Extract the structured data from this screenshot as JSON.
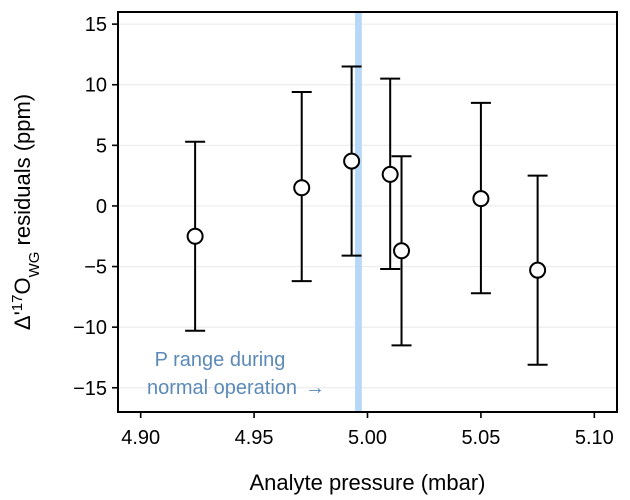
{
  "chart_data": {
    "type": "scatter",
    "xlabel": "Analyte pressure (mbar)",
    "ylabel": {
      "prefix": "Δ'",
      "sup": "17",
      "main": "O",
      "sub": "WG",
      "suffix": " residuals (ppm)"
    },
    "xlim": [
      4.89,
      5.11
    ],
    "ylim": [
      -17,
      16
    ],
    "x_ticks": [
      4.9,
      4.95,
      5.0,
      5.05,
      5.1
    ],
    "x_tick_labels": [
      "4.90",
      "4.95",
      "5.00",
      "5.05",
      "5.10"
    ],
    "y_ticks": [
      15,
      10,
      5,
      0,
      -5,
      -10,
      -15
    ],
    "y_tick_labels": [
      "15",
      "10",
      "5",
      "0",
      "−5",
      "−10",
      "−15"
    ],
    "grid": "horizontal",
    "highlight_band": {
      "x_start": 4.9945,
      "x_end": 4.9975,
      "color": "#b9d8f7"
    },
    "annotation": {
      "line1": "P range during",
      "line2": "normal operation",
      "arrow": "→",
      "color": "#5b8ab8"
    },
    "points": [
      {
        "x": 4.924,
        "y": -2.5,
        "y_low": -10.3,
        "y_high": 5.3
      },
      {
        "x": 4.971,
        "y": 1.5,
        "y_low": -6.2,
        "y_high": 9.4
      },
      {
        "x": 4.993,
        "y": 3.7,
        "y_low": -4.1,
        "y_high": 11.5
      },
      {
        "x": 5.01,
        "y": 2.6,
        "y_low": -5.2,
        "y_high": 10.5
      },
      {
        "x": 5.015,
        "y": -3.7,
        "y_low": -11.5,
        "y_high": 4.1
      },
      {
        "x": 5.05,
        "y": 0.6,
        "y_low": -7.2,
        "y_high": 8.5
      },
      {
        "x": 5.075,
        "y": -5.3,
        "y_low": -13.1,
        "y_high": 2.5
      }
    ]
  }
}
